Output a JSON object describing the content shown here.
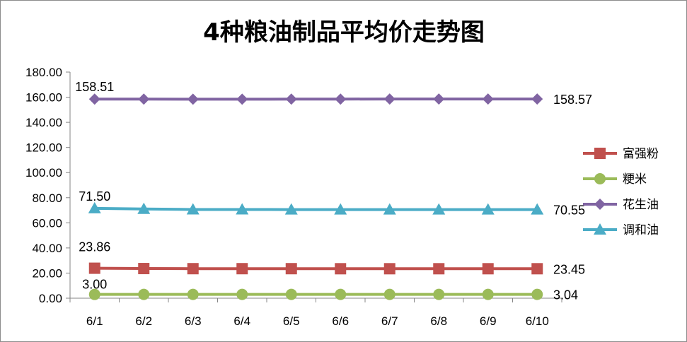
{
  "chart_data": {
    "type": "line",
    "title": "4种粮油制品平均价走势图",
    "xlabel": "",
    "ylabel": "",
    "categories": [
      "6/1",
      "6/2",
      "6/3",
      "6/4",
      "6/5",
      "6/6",
      "6/7",
      "6/8",
      "6/9",
      "6/10"
    ],
    "ylim": [
      0,
      180
    ],
    "ytick_labels": [
      "0.00",
      "20.00",
      "40.00",
      "60.00",
      "80.00",
      "100.00",
      "120.00",
      "140.00",
      "160.00",
      "180.00"
    ],
    "grid": false,
    "legend_position": "right",
    "series": [
      {
        "name": "富强粉",
        "color": "#c0504d",
        "marker": "square",
        "values": [
          23.86,
          23.6,
          23.5,
          23.5,
          23.5,
          23.45,
          23.45,
          23.45,
          23.45,
          23.45
        ],
        "first_label": "23.86",
        "last_label": "23.45"
      },
      {
        "name": "粳米",
        "color": "#9bbb59",
        "marker": "circle",
        "values": [
          3.0,
          3.02,
          3.03,
          3.03,
          3.03,
          3.03,
          3.04,
          3.04,
          3.04,
          3.04
        ],
        "first_label": "3.00",
        "last_label": "3.04"
      },
      {
        "name": "花生油",
        "color": "#8064a2",
        "marker": "diamond",
        "values": [
          158.51,
          158.5,
          158.4,
          158.4,
          158.45,
          158.5,
          158.55,
          158.55,
          158.55,
          158.57
        ],
        "first_label": "158.51",
        "last_label": "158.57"
      },
      {
        "name": "调和油",
        "color": "#4bacc6",
        "marker": "triangle",
        "values": [
          71.5,
          71.0,
          70.6,
          70.6,
          70.55,
          70.55,
          70.55,
          70.55,
          70.55,
          70.55
        ],
        "first_label": "71.50",
        "last_label": "70.55"
      }
    ]
  }
}
